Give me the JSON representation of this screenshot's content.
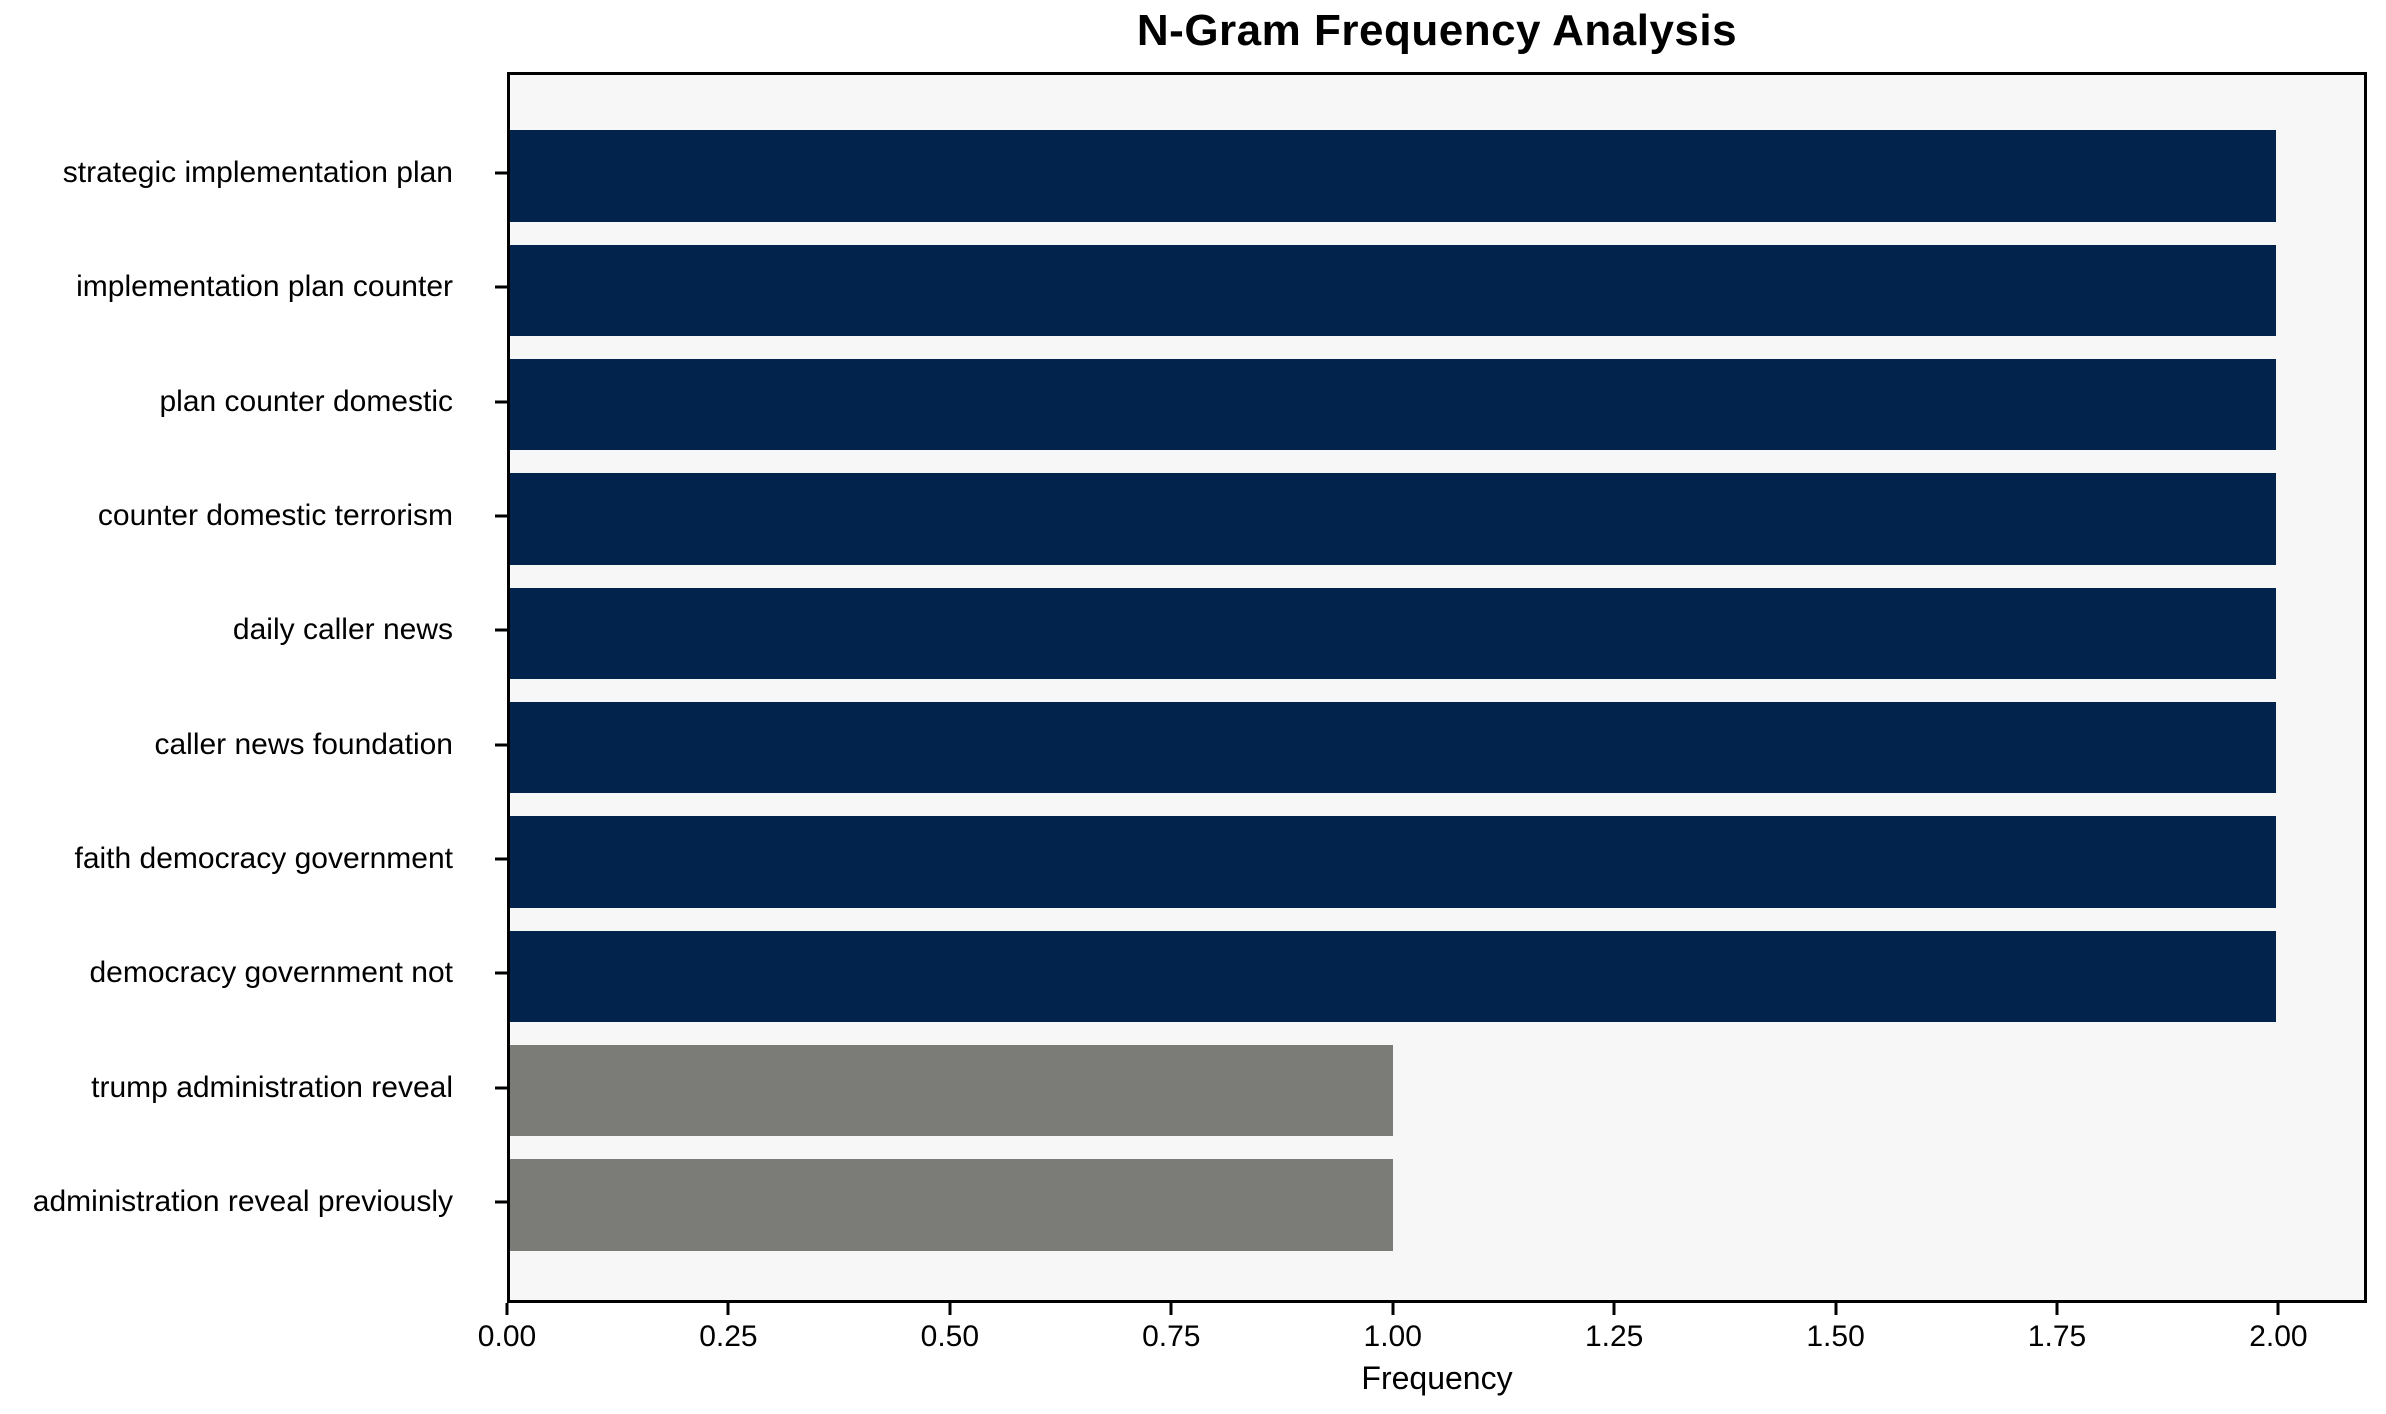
{
  "chart_data": {
    "type": "bar",
    "orientation": "horizontal",
    "title": "N-Gram Frequency Analysis",
    "xlabel": "Frequency",
    "ylabel": "",
    "categories": [
      "strategic implementation plan",
      "implementation plan counter",
      "plan counter domestic",
      "counter domestic terrorism",
      "daily caller news",
      "caller news foundation",
      "faith democracy government",
      "democracy government not",
      "trump administration reveal",
      "administration reveal previously"
    ],
    "values": [
      2,
      2,
      2,
      2,
      2,
      2,
      2,
      2,
      1,
      1
    ],
    "bar_colors": [
      "#02234c",
      "#02234c",
      "#02234c",
      "#02234c",
      "#02234c",
      "#02234c",
      "#02234c",
      "#02234c",
      "#7b7b78",
      "#7b7b78"
    ],
    "xlim": [
      0,
      2.1
    ],
    "xticks": [
      "0.00",
      "0.25",
      "0.50",
      "0.75",
      "1.00",
      "1.25",
      "1.50",
      "1.75",
      "2.00"
    ],
    "xtick_values": [
      0,
      0.25,
      0.5,
      0.75,
      1.0,
      1.25,
      1.5,
      1.75,
      2.0
    ],
    "grid": false,
    "legend": "none",
    "colors": {
      "bar_primary": "#02234c",
      "bar_secondary": "#7b7b78",
      "plot_background": "#f7f7f8",
      "figure_background": "#ffffff",
      "spine": "#000000",
      "text": "#000000"
    }
  }
}
